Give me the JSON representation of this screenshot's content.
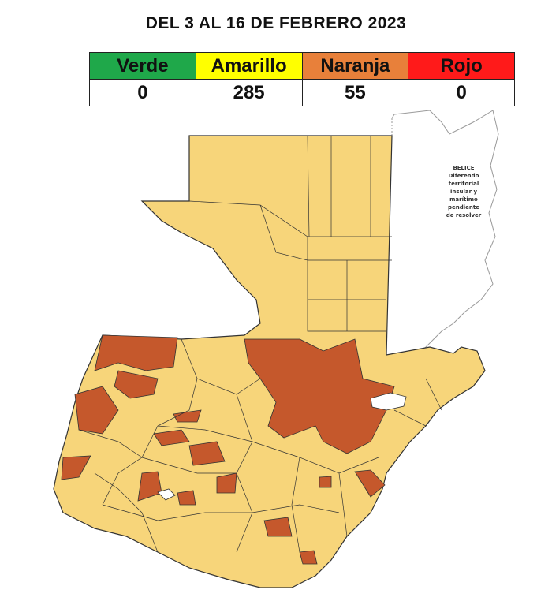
{
  "header": {
    "title": "DEL 3 AL 16 DE FEBRERO 2023"
  },
  "table": {
    "headers": [
      "Verde",
      "Amarillo",
      "Naranja",
      "Rojo"
    ],
    "values": [
      "0",
      "285",
      "55",
      "0"
    ]
  },
  "map": {
    "belize_note": [
      "BELICE",
      "Diferendo",
      "territorial",
      "insular y",
      "marítimo",
      "pendiente",
      "de resolver"
    ]
  }
}
